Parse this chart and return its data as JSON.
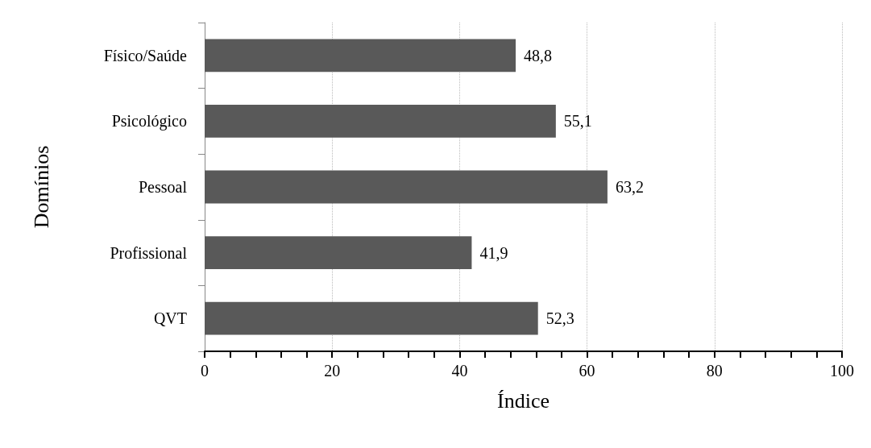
{
  "chart_data": {
    "type": "bar",
    "orientation": "horizontal",
    "xlabel": "Índice",
    "ylabel": "Domínios",
    "categories": [
      "Físico/Saúde",
      "Psicológico",
      "Pessoal",
      "Profissional",
      "QVT"
    ],
    "values": [
      48.8,
      55.1,
      63.2,
      41.9,
      52.3
    ],
    "value_labels": [
      "48,8",
      "55,1",
      "63,2",
      "41,9",
      "52,3"
    ],
    "color": "#595959",
    "xlim": [
      0,
      100
    ],
    "xticks": [
      0,
      {
        "value": 4,
        "label": null
      },
      {
        "value": 8,
        "label": null
      },
      {
        "value": 12,
        "label": null
      },
      {
        "value": 16,
        "label": null
      },
      20,
      {
        "value": 24,
        "label": null
      },
      {
        "value": 28,
        "label": null
      },
      {
        "value": 32,
        "label": null
      },
      {
        "value": 36,
        "label": null
      },
      40,
      {
        "value": 44,
        "label": null
      },
      {
        "value": 48,
        "label": null
      },
      {
        "value": 52,
        "label": null
      },
      {
        "value": 56,
        "label": null
      },
      60,
      {
        "value": 64,
        "label": null
      },
      {
        "value": 68,
        "label": null
      },
      {
        "value": 72,
        "label": null
      },
      {
        "value": 76,
        "label": null
      },
      80,
      {
        "value": 84,
        "label": null
      },
      {
        "value": 88,
        "label": null
      },
      {
        "value": 92,
        "label": null
      },
      {
        "value": 96,
        "label": null
      },
      100
    ],
    "grid": "x"
  }
}
